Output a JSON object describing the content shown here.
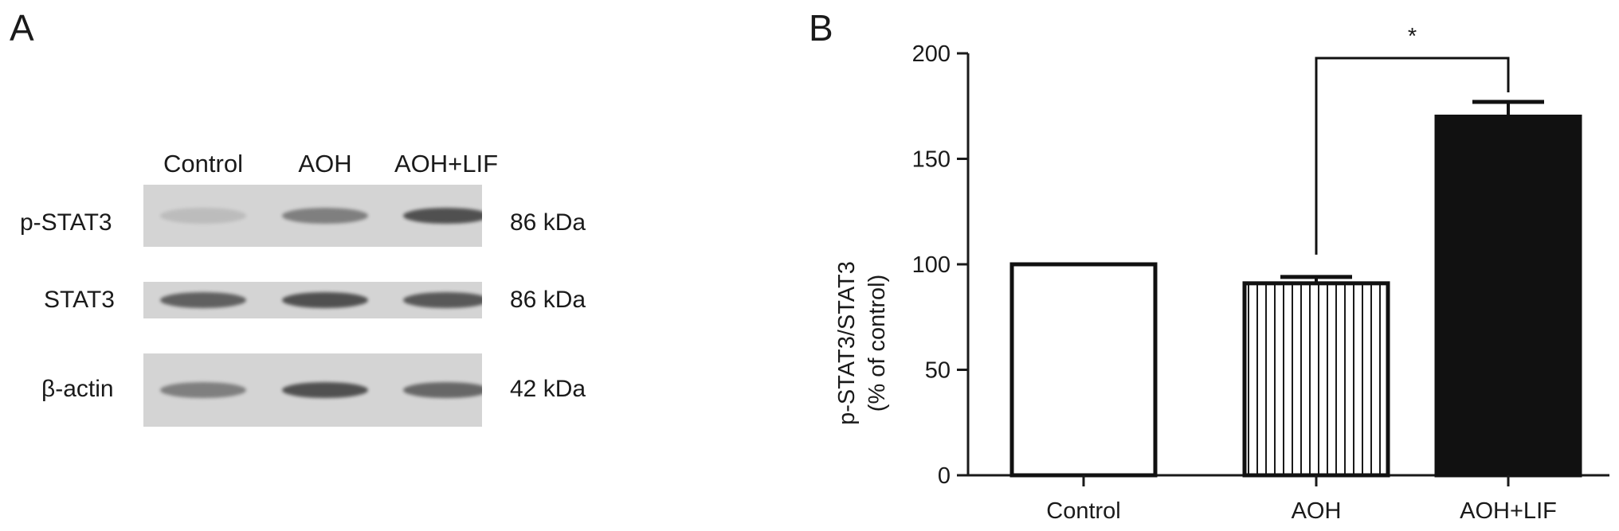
{
  "panels": {
    "a": "A",
    "b": "B"
  },
  "blot": {
    "lanes": [
      "Control",
      "AOH",
      "AOH+LIF"
    ],
    "rows": [
      {
        "name": "p-STAT3",
        "kda": "86 kDa",
        "intensity": [
          0.15,
          0.55,
          0.85
        ]
      },
      {
        "name": "STAT3",
        "kda": "86 kDa",
        "intensity": [
          0.75,
          0.85,
          0.8
        ]
      },
      {
        "name": "β-actin",
        "kda": "42 kDa",
        "intensity": [
          0.55,
          0.85,
          0.7
        ]
      }
    ]
  },
  "chart_data": {
    "type": "bar",
    "categories": [
      "Control",
      "AOH",
      "AOH+LIF"
    ],
    "values": [
      100,
      91,
      170
    ],
    "errors": [
      0,
      3,
      7
    ],
    "fills": [
      "white",
      "vertical-stripes",
      "black"
    ],
    "ylabel_line1": "p-STAT3/STAT3",
    "ylabel_line2": "(% of control)",
    "ylim": [
      0,
      200
    ],
    "yticks": [
      0,
      50,
      100,
      150,
      200
    ],
    "significance": {
      "from": "AOH",
      "to": "AOH+LIF",
      "label": "*"
    }
  }
}
